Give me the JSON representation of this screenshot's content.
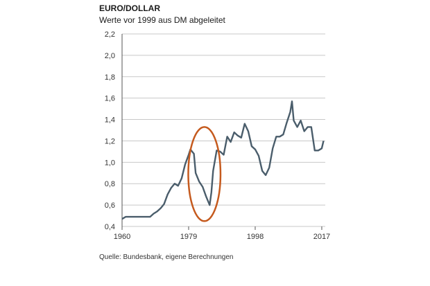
{
  "chart_data": {
    "type": "line",
    "title": "EURO/DOLLAR",
    "subtitle": "Werte vor 1999 aus DM abgeleitet",
    "source": "Quelle: Bundesbank, eigene Berechnungen",
    "xlabel": "",
    "ylabel": "",
    "xlim": [
      1960,
      2018
    ],
    "ylim": [
      0.4,
      2.2
    ],
    "x_ticks": [
      {
        "value": 1960,
        "label": "1960"
      },
      {
        "value": 1979,
        "label": "1979"
      },
      {
        "value": 1998,
        "label": "1998"
      },
      {
        "value": 2017,
        "label": "2017"
      }
    ],
    "y_ticks": [
      {
        "value": 0.4,
        "label": "0,4"
      },
      {
        "value": 0.6,
        "label": "0,6"
      },
      {
        "value": 0.8,
        "label": "0,8"
      },
      {
        "value": 1.0,
        "label": "1,0"
      },
      {
        "value": 1.2,
        "label": "1,2"
      },
      {
        "value": 1.4,
        "label": "1,4"
      },
      {
        "value": 1.6,
        "label": "1,6"
      },
      {
        "value": 1.8,
        "label": "1,8"
      },
      {
        "value": 2.0,
        "label": "2,0"
      },
      {
        "value": 2.2,
        "label": "2,2"
      }
    ],
    "grid": {
      "horizontal": true,
      "vertical": false
    },
    "legend": "none",
    "colors": {
      "line": "#4a5d6b",
      "annotation": "#c55a1e",
      "grid": "#c8c8c8"
    },
    "series": [
      {
        "values": [
          [
            1960,
            0.47
          ],
          [
            1961,
            0.49
          ],
          [
            1962,
            0.49
          ],
          [
            1963,
            0.49
          ],
          [
            1964,
            0.49
          ],
          [
            1965,
            0.49
          ],
          [
            1966,
            0.49
          ],
          [
            1967,
            0.49
          ],
          [
            1968,
            0.49
          ],
          [
            1969,
            0.52
          ],
          [
            1970,
            0.54
          ],
          [
            1971,
            0.57
          ],
          [
            1972,
            0.61
          ],
          [
            1973,
            0.7
          ],
          [
            1974,
            0.76
          ],
          [
            1975,
            0.8
          ],
          [
            1976,
            0.78
          ],
          [
            1977,
            0.85
          ],
          [
            1978,
            0.98
          ],
          [
            1979,
            1.07
          ],
          [
            1979.5,
            1.12
          ],
          [
            1980,
            1.1
          ],
          [
            1980.5,
            1.08
          ],
          [
            1981,
            0.9
          ],
          [
            1982,
            0.82
          ],
          [
            1983,
            0.77
          ],
          [
            1984,
            0.68
          ],
          [
            1985,
            0.6
          ],
          [
            1985.5,
            0.72
          ],
          [
            1986,
            0.92
          ],
          [
            1987,
            1.11
          ],
          [
            1988,
            1.1
          ],
          [
            1989,
            1.07
          ],
          [
            1990,
            1.24
          ],
          [
            1991,
            1.19
          ],
          [
            1992,
            1.28
          ],
          [
            1993,
            1.25
          ],
          [
            1994,
            1.23
          ],
          [
            1995,
            1.36
          ],
          [
            1996,
            1.29
          ],
          [
            1997,
            1.15
          ],
          [
            1998,
            1.12
          ],
          [
            1999,
            1.06
          ],
          [
            2000,
            0.92
          ],
          [
            2001,
            0.88
          ],
          [
            2002,
            0.95
          ],
          [
            2003,
            1.13
          ],
          [
            2004,
            1.24
          ],
          [
            2005,
            1.24
          ],
          [
            2006,
            1.26
          ],
          [
            2007,
            1.37
          ],
          [
            2008,
            1.47
          ],
          [
            2008.5,
            1.57
          ],
          [
            2009,
            1.39
          ],
          [
            2010,
            1.33
          ],
          [
            2011,
            1.39
          ],
          [
            2012,
            1.29
          ],
          [
            2013,
            1.33
          ],
          [
            2014,
            1.33
          ],
          [
            2015,
            1.11
          ],
          [
            2016,
            1.11
          ],
          [
            2017,
            1.13
          ],
          [
            2017.5,
            1.2
          ]
        ]
      }
    ],
    "annotations": [
      {
        "type": "ellipse",
        "x_center": 1983.5,
        "y_center": 0.89,
        "x_radius": 4.6,
        "y_radius": 0.44
      }
    ]
  }
}
